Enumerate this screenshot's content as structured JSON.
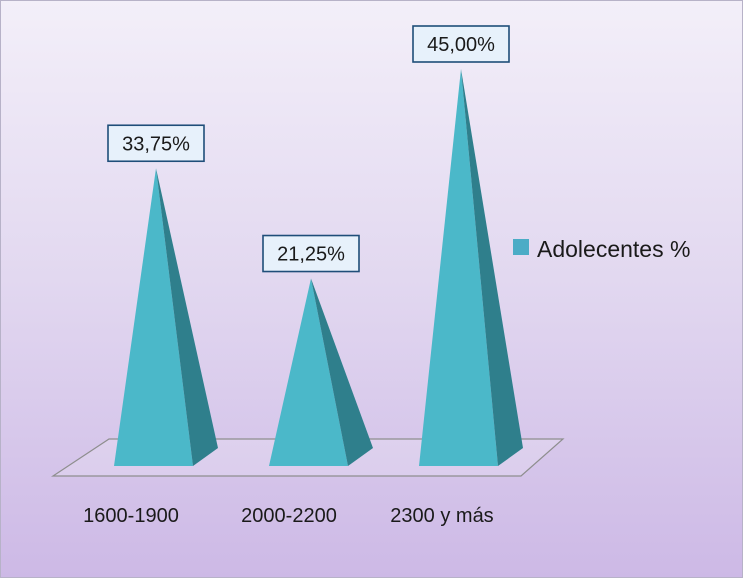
{
  "chart_data": {
    "type": "bar",
    "bar_shape": "3d-pyramid",
    "categories": [
      "1600-1900",
      "2000-2200",
      "2300 y más"
    ],
    "series": [
      {
        "name": "Adolecentes %",
        "values": [
          33.75,
          21.25,
          45.0
        ],
        "labels": [
          "33,75%",
          "21,25%",
          "45,00%"
        ],
        "color": "#4bacc6"
      }
    ],
    "ylim": [
      0,
      45
    ],
    "grid": false,
    "legend_position": "right",
    "colors": {
      "front_face": "#4bb8c9",
      "side_face": "#2f7f8c",
      "background_top": "#f3eff9",
      "background_bottom": "#cdb9e6",
      "label_border": "#1f4e79",
      "label_fill": "#e7f1fb"
    }
  }
}
